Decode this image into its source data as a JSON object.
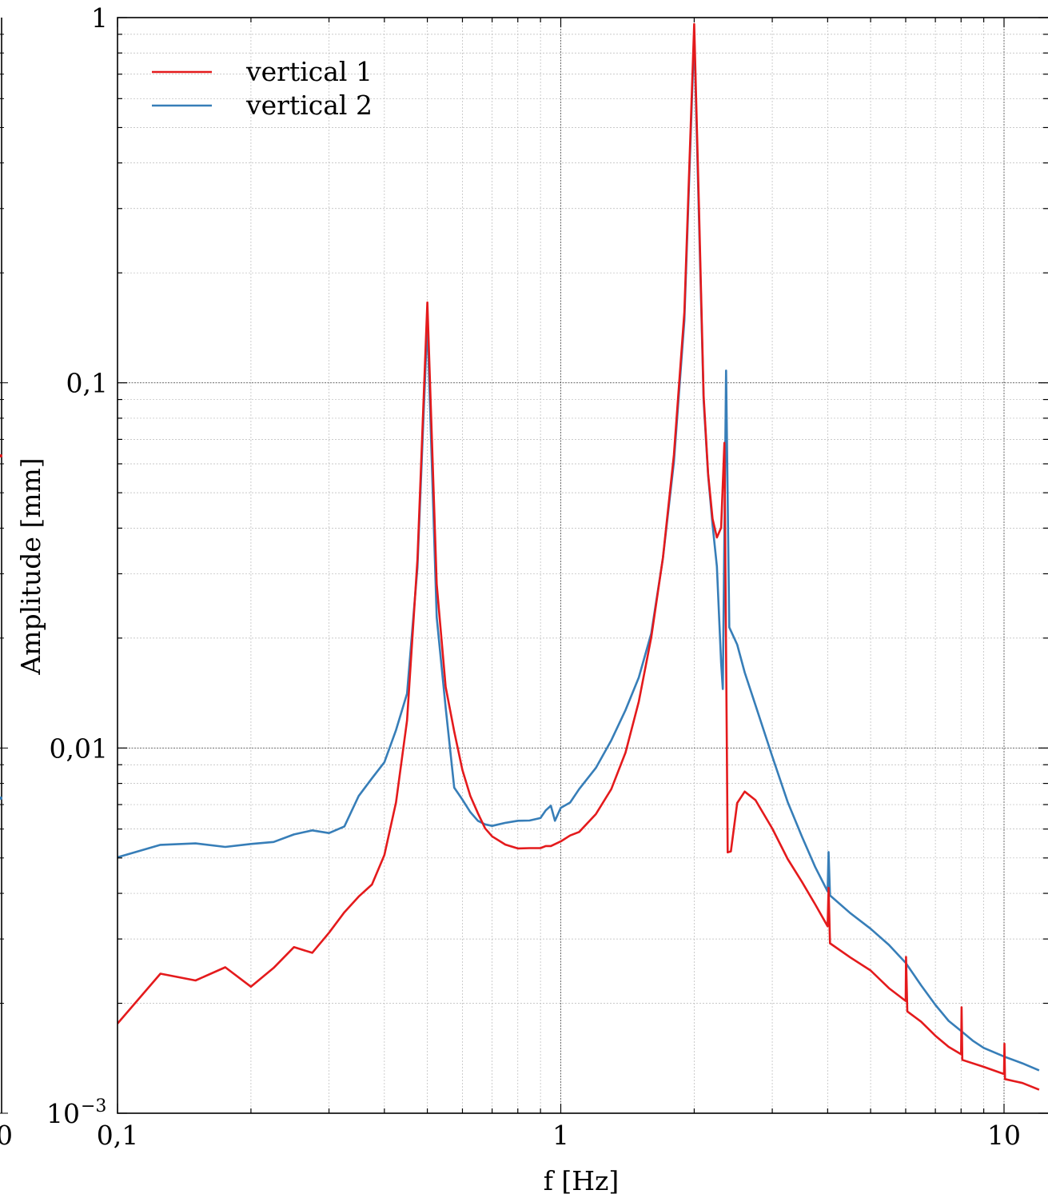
{
  "chart_data": {
    "type": "line",
    "title": "",
    "xlabel": "f [Hz]",
    "ylabel": "Amplitude [mm]",
    "xscale": "log",
    "yscale": "log",
    "xlim": [
      0.1,
      12
    ],
    "ylim": [
      0.001,
      1
    ],
    "grid": true,
    "legend_position": "top-left",
    "x_ticks": [
      {
        "value": 0.1,
        "label": "0,1"
      },
      {
        "value": 1,
        "label": "1"
      },
      {
        "value": 10,
        "label": "10"
      }
    ],
    "y_ticks": [
      {
        "value": 0.001,
        "label": "10",
        "exp": "−3"
      },
      {
        "value": 0.01,
        "label": "0,01"
      },
      {
        "value": 0.1,
        "label": "0,1"
      },
      {
        "value": 1,
        "label": "1"
      }
    ],
    "left_panel_partial_labels": {
      "x_tick": "0"
    },
    "series": [
      {
        "name": "vertical 1",
        "color": "#e41a1c",
        "points": [
          [
            0.1,
            0.00176
          ],
          [
            0.125,
            0.00241
          ],
          [
            0.15,
            0.00231
          ],
          [
            0.175,
            0.00251
          ],
          [
            0.2,
            0.00222
          ],
          [
            0.225,
            0.0025
          ],
          [
            0.25,
            0.00285
          ],
          [
            0.275,
            0.00275
          ],
          [
            0.3,
            0.00312
          ],
          [
            0.325,
            0.00355
          ],
          [
            0.35,
            0.00392
          ],
          [
            0.375,
            0.00423
          ],
          [
            0.4,
            0.00509
          ],
          [
            0.425,
            0.0071
          ],
          [
            0.45,
            0.0119
          ],
          [
            0.475,
            0.0328
          ],
          [
            0.5,
            0.166
          ],
          [
            0.525,
            0.0281
          ],
          [
            0.55,
            0.0147
          ],
          [
            0.575,
            0.0111
          ],
          [
            0.6,
            0.0087
          ],
          [
            0.625,
            0.0074
          ],
          [
            0.65,
            0.00663
          ],
          [
            0.675,
            0.00603
          ],
          [
            0.7,
            0.00573
          ],
          [
            0.75,
            0.00544
          ],
          [
            0.8,
            0.00531
          ],
          [
            0.85,
            0.00532
          ],
          [
            0.9,
            0.00532
          ],
          [
            0.925,
            0.00539
          ],
          [
            0.95,
            0.00539
          ],
          [
            1.0,
            0.00555
          ],
          [
            1.05,
            0.00576
          ],
          [
            1.1,
            0.00589
          ],
          [
            1.2,
            0.00659
          ],
          [
            1.3,
            0.00772
          ],
          [
            1.4,
            0.00972
          ],
          [
            1.5,
            0.0134
          ],
          [
            1.6,
            0.0201
          ],
          [
            1.7,
            0.0332
          ],
          [
            1.8,
            0.0634
          ],
          [
            1.9,
            0.156
          ],
          [
            2.0,
            0.96
          ],
          [
            2.05,
            0.301
          ],
          [
            2.1,
            0.0922
          ],
          [
            2.15,
            0.0564
          ],
          [
            2.2,
            0.0424
          ],
          [
            2.25,
            0.0377
          ],
          [
            2.3,
            0.0401
          ],
          [
            2.34,
            0.0685
          ],
          [
            2.38,
            0.00518
          ],
          [
            2.42,
            0.00521
          ],
          [
            2.5,
            0.00707
          ],
          [
            2.6,
            0.0076
          ],
          [
            2.75,
            0.0072
          ],
          [
            3.0,
            0.00602
          ],
          [
            3.25,
            0.00497
          ],
          [
            3.5,
            0.0043
          ],
          [
            3.75,
            0.00373
          ],
          [
            4.0,
            0.00325
          ],
          [
            4.02,
            0.00414
          ],
          [
            4.05,
            0.00292
          ],
          [
            4.5,
            0.00267
          ],
          [
            5.0,
            0.00246
          ],
          [
            5.5,
            0.0022
          ],
          [
            6.0,
            0.00203
          ],
          [
            6.01,
            0.00268
          ],
          [
            6.05,
            0.0019
          ],
          [
            6.5,
            0.00178
          ],
          [
            7.0,
            0.00163
          ],
          [
            7.5,
            0.00152
          ],
          [
            8.0,
            0.00145
          ],
          [
            8.02,
            0.00195
          ],
          [
            8.05,
            0.0014
          ],
          [
            9.0,
            0.00134
          ],
          [
            10.0,
            0.00128
          ],
          [
            10.02,
            0.00155
          ],
          [
            10.05,
            0.00124
          ],
          [
            11.0,
            0.00121
          ],
          [
            12.0,
            0.00116
          ]
        ]
      },
      {
        "name": "vertical 2",
        "color": "#377eb8",
        "points": [
          [
            0.1,
            0.00502
          ],
          [
            0.125,
            0.00543
          ],
          [
            0.15,
            0.00548
          ],
          [
            0.175,
            0.00536
          ],
          [
            0.2,
            0.00546
          ],
          [
            0.225,
            0.00553
          ],
          [
            0.25,
            0.0058
          ],
          [
            0.275,
            0.00595
          ],
          [
            0.3,
            0.00585
          ],
          [
            0.325,
            0.0061
          ],
          [
            0.35,
            0.00739
          ],
          [
            0.375,
            0.00826
          ],
          [
            0.4,
            0.00914
          ],
          [
            0.425,
            0.0112
          ],
          [
            0.45,
            0.0141
          ],
          [
            0.475,
            0.0312
          ],
          [
            0.5,
            0.147
          ],
          [
            0.525,
            0.0228
          ],
          [
            0.55,
            0.0129
          ],
          [
            0.575,
            0.00779
          ],
          [
            0.6,
            0.00722
          ],
          [
            0.625,
            0.00668
          ],
          [
            0.65,
            0.00632
          ],
          [
            0.675,
            0.00618
          ],
          [
            0.7,
            0.00612
          ],
          [
            0.75,
            0.00624
          ],
          [
            0.8,
            0.00632
          ],
          [
            0.85,
            0.00633
          ],
          [
            0.9,
            0.00643
          ],
          [
            0.925,
            0.00675
          ],
          [
            0.95,
            0.00695
          ],
          [
            0.97,
            0.00632
          ],
          [
            1.0,
            0.00686
          ],
          [
            1.05,
            0.00709
          ],
          [
            1.1,
            0.00772
          ],
          [
            1.2,
            0.00882
          ],
          [
            1.3,
            0.0105
          ],
          [
            1.4,
            0.0127
          ],
          [
            1.5,
            0.0156
          ],
          [
            1.6,
            0.0206
          ],
          [
            1.7,
            0.0331
          ],
          [
            1.8,
            0.0606
          ],
          [
            1.9,
            0.148
          ],
          [
            2.0,
            0.901
          ],
          [
            2.05,
            0.28
          ],
          [
            2.1,
            0.0894
          ],
          [
            2.15,
            0.0559
          ],
          [
            2.2,
            0.0408
          ],
          [
            2.25,
            0.0314
          ],
          [
            2.3,
            0.0171
          ],
          [
            2.32,
            0.0145
          ],
          [
            2.36,
            0.108
          ],
          [
            2.4,
            0.0214
          ],
          [
            2.5,
            0.0192
          ],
          [
            2.6,
            0.0161
          ],
          [
            2.75,
            0.0131
          ],
          [
            3.0,
            0.00948
          ],
          [
            3.25,
            0.00712
          ],
          [
            3.5,
            0.00572
          ],
          [
            3.75,
            0.00472
          ],
          [
            4.0,
            0.00405
          ],
          [
            4.02,
            0.00519
          ],
          [
            4.05,
            0.00395
          ],
          [
            4.5,
            0.00353
          ],
          [
            5.0,
            0.0032
          ],
          [
            5.5,
            0.00289
          ],
          [
            6.0,
            0.00258
          ],
          [
            6.5,
            0.00224
          ],
          [
            7.0,
            0.00198
          ],
          [
            7.5,
            0.00179
          ],
          [
            8.0,
            0.00168
          ],
          [
            8.5,
            0.00158
          ],
          [
            9.0,
            0.00151
          ],
          [
            10.0,
            0.00143
          ],
          [
            11.0,
            0.00137
          ],
          [
            12.0,
            0.00131
          ]
        ]
      }
    ]
  }
}
